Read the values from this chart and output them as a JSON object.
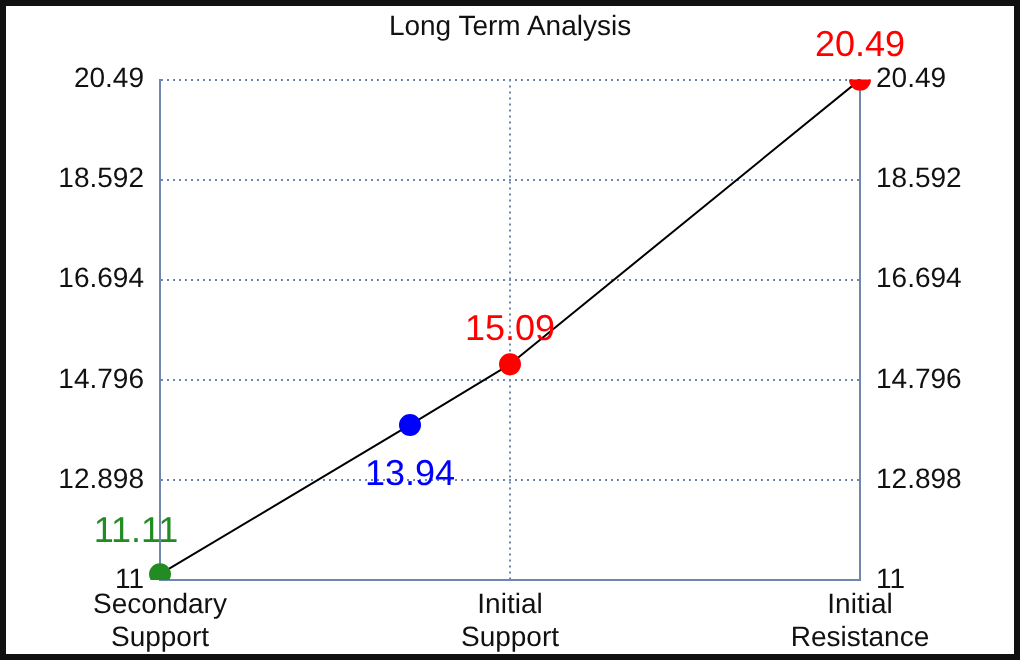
{
  "chart_data": {
    "type": "line",
    "title": "Long Term Analysis",
    "categories": [
      "Secondary Support",
      null,
      null,
      null,
      null,
      null,
      null,
      "Initial Support",
      null,
      null,
      null,
      null,
      null,
      null,
      "Initial Resistance"
    ],
    "series": [
      {
        "color": "#000000",
        "colors": [
          "#228b22",
          null,
          null,
          null,
          null,
          "#0000ff",
          null,
          "#ff0000",
          null,
          null,
          null,
          null,
          null,
          null,
          "#ff0000"
        ],
        "values": [
          11.11,
          null,
          null,
          null,
          null,
          13.94,
          null,
          15.09,
          null,
          null,
          null,
          null,
          null,
          null,
          20.49
        ]
      }
    ],
    "ylim": [
      11,
      20.49
    ],
    "yticks": [
      11,
      12.898,
      14.796,
      16.694,
      18.592,
      20.49
    ],
    "y2lim": [
      11,
      20.49
    ],
    "y2ticks": [
      11,
      12.898,
      14.796,
      16.694,
      18.592,
      20.49
    ],
    "grid": true,
    "data_labels": true,
    "marker": "circle",
    "line_style": "solid"
  }
}
